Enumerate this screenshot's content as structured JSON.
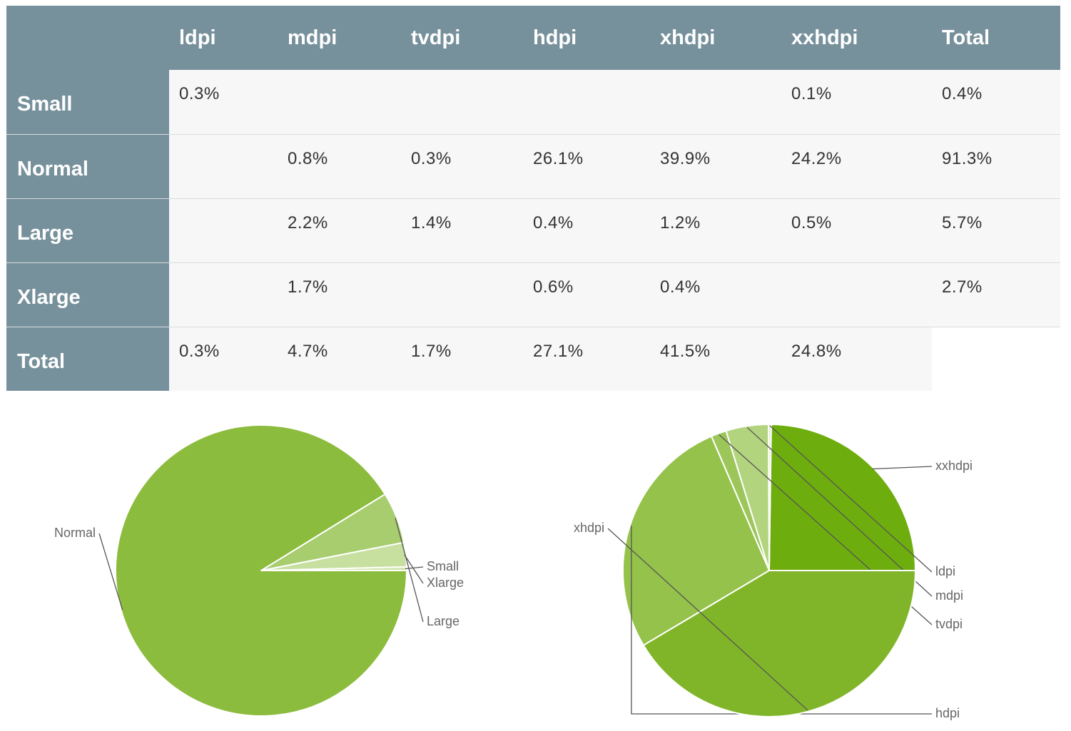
{
  "table": {
    "columns": [
      "",
      "ldpi",
      "mdpi",
      "tvdpi",
      "hdpi",
      "xhdpi",
      "xxhdpi",
      "Total"
    ],
    "rows": [
      {
        "label": "Small",
        "cells": [
          "0.3%",
          "",
          "",
          "",
          "",
          "0.1%",
          "0.4%"
        ]
      },
      {
        "label": "Normal",
        "cells": [
          "",
          "0.8%",
          "0.3%",
          "26.1%",
          "39.9%",
          "24.2%",
          "91.3%"
        ]
      },
      {
        "label": "Large",
        "cells": [
          "",
          "2.2%",
          "1.4%",
          "0.4%",
          "1.2%",
          "0.5%",
          "5.7%"
        ]
      },
      {
        "label": "Xlarge",
        "cells": [
          "",
          "1.7%",
          "",
          "0.6%",
          "0.4%",
          "",
          "2.7%"
        ]
      },
      {
        "label": "Total",
        "cells": [
          "0.3%",
          "4.7%",
          "1.7%",
          "27.1%",
          "41.5%",
          "24.8%",
          ""
        ]
      }
    ]
  },
  "chart_data": [
    {
      "type": "pie",
      "labels": [
        "Small",
        "Xlarge",
        "Large",
        "Normal"
      ],
      "values": [
        0.4,
        2.7,
        5.7,
        91.3
      ],
      "colors": [
        "#cfe3ad",
        "#c7e0a0",
        "#a7cd6e",
        "#8cbc3e"
      ]
    },
    {
      "type": "pie",
      "labels": [
        "xxhdpi",
        "ldpi",
        "mdpi",
        "tvdpi",
        "hdpi",
        "xhdpi"
      ],
      "values": [
        24.8,
        0.3,
        4.7,
        1.7,
        27.1,
        41.5
      ],
      "colors": [
        "#6ead0e",
        "#d9eac0",
        "#b3d47e",
        "#9cc65a",
        "#94c24a",
        "#80b52a"
      ]
    }
  ]
}
